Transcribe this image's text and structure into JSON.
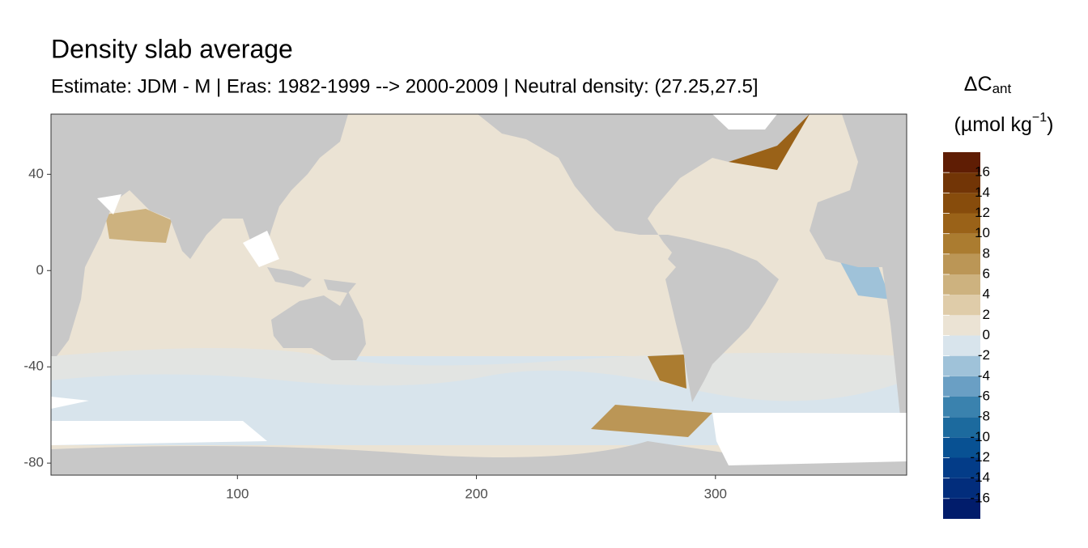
{
  "chart_data": {
    "type": "raster-map",
    "title": "Density slab average",
    "subtitle": "Estimate: JDM - M | Eras: 1982-1999 --> 2000-2009 | Neutral density: (27.25,27.5]",
    "xlim": [
      22,
      380
    ],
    "ylim": [
      -85,
      65
    ],
    "xticks": [
      100,
      200,
      300
    ],
    "yticks": [
      40,
      0,
      -40,
      -80
    ],
    "legend": {
      "title": "ΔC",
      "title_sub": "ant",
      "unit": "(µmol kg",
      "unit_sup": "−1",
      "unit_end": ")",
      "bins": [
        -18,
        -16,
        -14,
        -12,
        -10,
        -8,
        -6,
        -4,
        -2,
        0,
        2,
        4,
        6,
        8,
        10,
        12,
        14,
        16,
        18
      ],
      "ticks": [
        -16,
        -14,
        -12,
        -10,
        -8,
        -6,
        -4,
        -2,
        0,
        2,
        4,
        6,
        8,
        10,
        12,
        14,
        16
      ],
      "colors": [
        "#011c6b",
        "#022d7c",
        "#033c88",
        "#085193",
        "#1c6a9e",
        "#3a82ae",
        "#6a9fc4",
        "#9fc2d9",
        "#d8e4ec",
        "#ebe3d4",
        "#dfcca9",
        "#cdb27f",
        "#bb9656",
        "#ab7c30",
        "#9a6218",
        "#874c0c",
        "#723506",
        "#5f1d04"
      ]
    }
  }
}
